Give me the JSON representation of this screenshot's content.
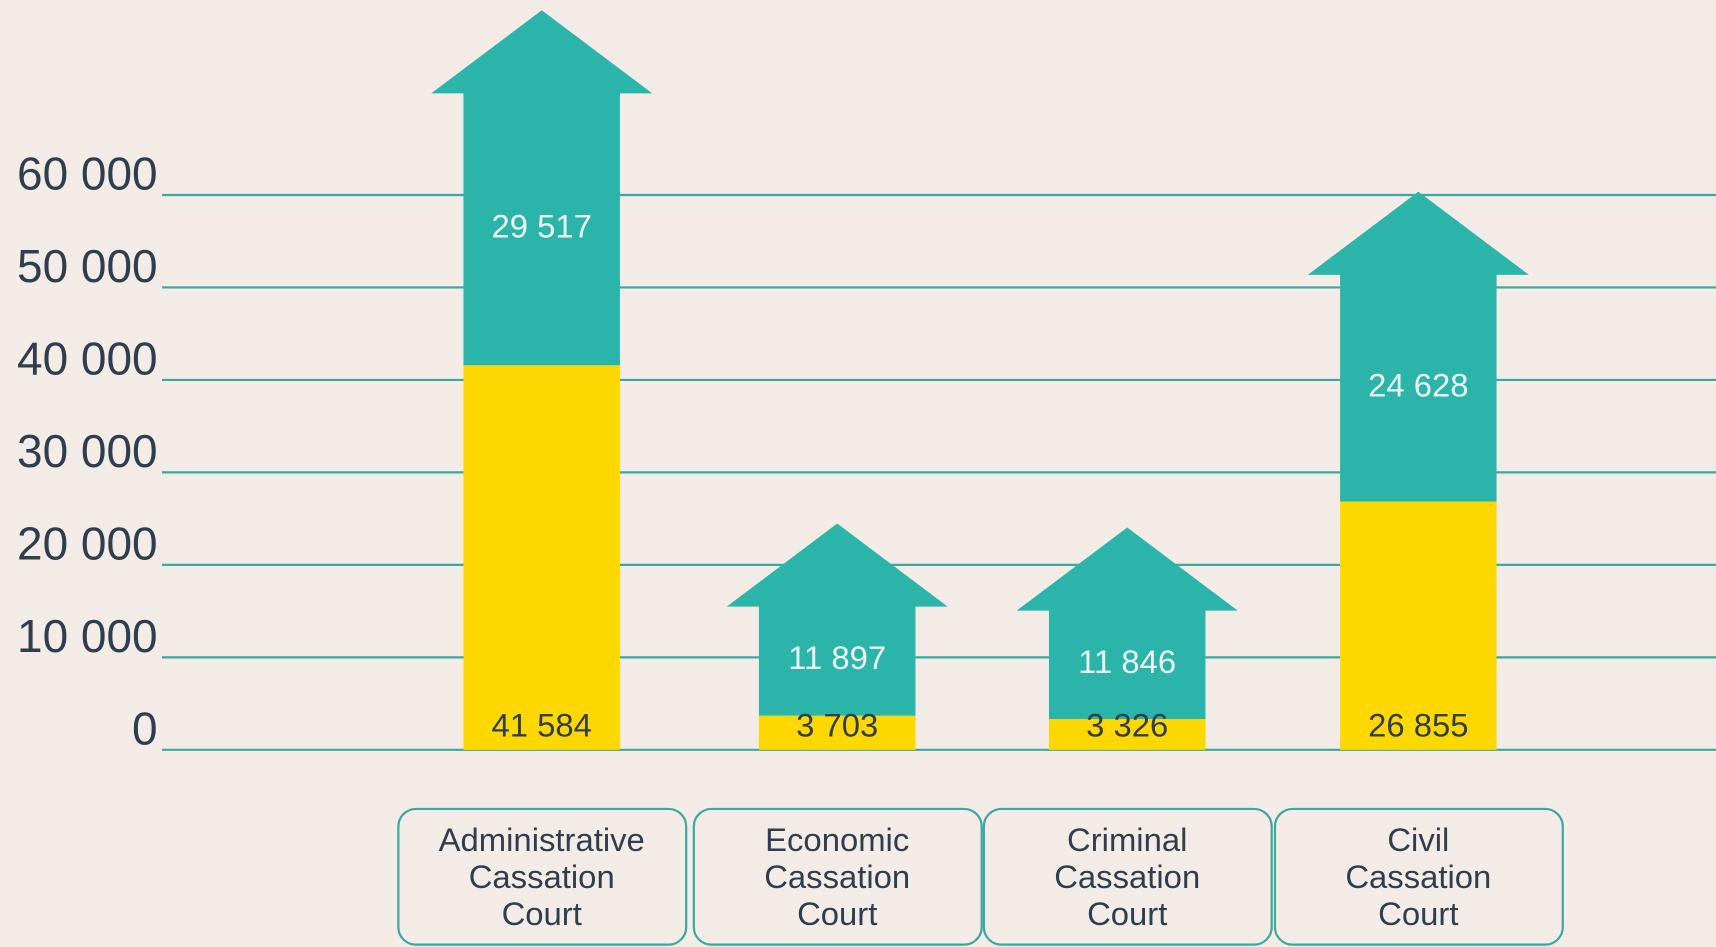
{
  "chart_data": {
    "type": "bar",
    "stacked": true,
    "categories": [
      "Administrative Cassation Court",
      "Economic Cassation Court",
      "Criminal Cassation Court",
      "Civil Cassation Court"
    ],
    "series": [
      {
        "color": "#fdd800",
        "values": [
          41584,
          3703,
          3326,
          26855
        ],
        "value_labels": [
          "41 584",
          "3 703",
          "3 326",
          "26 855"
        ]
      },
      {
        "color": "#2bb5aa",
        "values": [
          29517,
          11897,
          11846,
          24628
        ],
        "value_labels": [
          "29 517",
          "11 897",
          "11 846",
          "24 628"
        ]
      }
    ],
    "ylim": [
      0,
      80000
    ],
    "yticks": [
      0,
      {
        "value": 10000,
        "label": "10 000"
      },
      {
        "value": 20000,
        "label": "20 000"
      },
      {
        "value": 30000,
        "label": "30 000"
      },
      {
        "value": 40000,
        "label": "40 000"
      },
      {
        "value": 50000,
        "label": "50 000"
      },
      {
        "value": 60000,
        "label": "60 000"
      }
    ],
    "grid": true
  }
}
